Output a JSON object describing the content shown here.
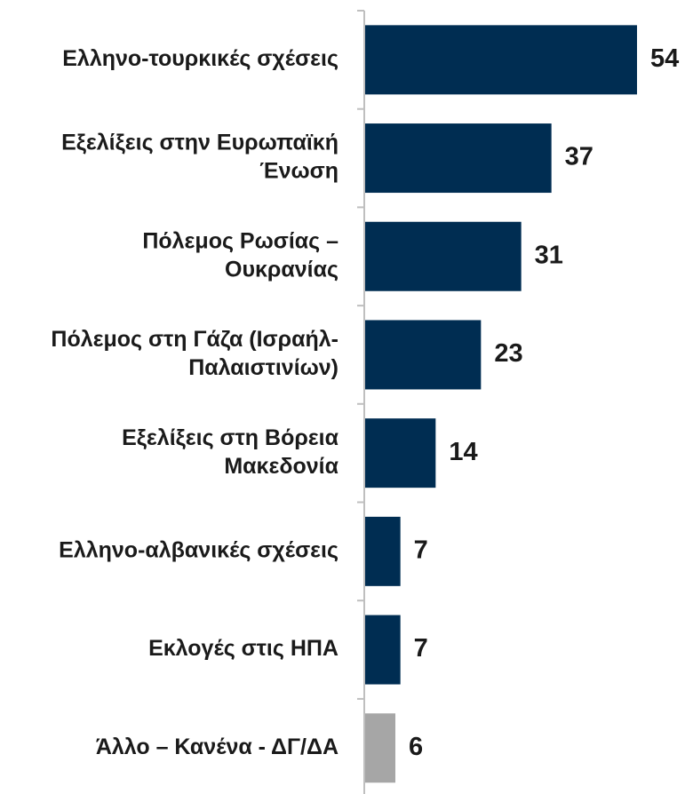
{
  "chart_data": {
    "type": "bar",
    "orientation": "horizontal",
    "title": "",
    "xlabel": "",
    "ylabel": "",
    "xlim": [
      0,
      60
    ],
    "grid": false,
    "legend": "none",
    "categories": [
      "Ελληνο-τουρκικές σχέσεις",
      "Εξελίξεις στην Ευρωπαϊκή Ένωση",
      "Πόλεμος Ρωσίας – Ουκρανίας",
      "Πόλεμος στη Γάζα (Ισραήλ-Παλαιστινίων)",
      "Εξελίξεις στη Βόρεια Μακεδονία",
      "Ελληνο-αλβανικές σχέσεις",
      "Εκλογές στις ΗΠΑ",
      "Άλλο – Κανένα - ΔΓ/ΔΑ"
    ],
    "category_lines": [
      [
        "Ελληνο-τουρκικές σχέσεις"
      ],
      [
        "Εξελίξεις στην Ευρωπαϊκή",
        "Ένωση"
      ],
      [
        "Πόλεμος Ρωσίας –",
        "Ουκρανίας"
      ],
      [
        "Πόλεμος στη Γάζα (Ισραήλ-",
        "Παλαιστινίων)"
      ],
      [
        "Εξελίξεις στη Βόρεια",
        "Μακεδονία"
      ],
      [
        "Ελληνο-αλβανικές σχέσεις"
      ],
      [
        "Εκλογές στις ΗΠΑ"
      ],
      [
        "Άλλο – Κανένα - ΔΓ/ΔΑ"
      ]
    ],
    "values": [
      54,
      37,
      31,
      23,
      14,
      7,
      7,
      6
    ],
    "value_labels": [
      "54",
      "37",
      "31",
      "23",
      "14",
      "7",
      "7",
      "6"
    ],
    "colors": {
      "primary": "#002d52",
      "other": "#a6a6a6",
      "axis": "#bfbfbf",
      "text": "#1a1a1a"
    },
    "bar_colors": [
      "primary",
      "primary",
      "primary",
      "primary",
      "primary",
      "primary",
      "primary",
      "other"
    ]
  }
}
